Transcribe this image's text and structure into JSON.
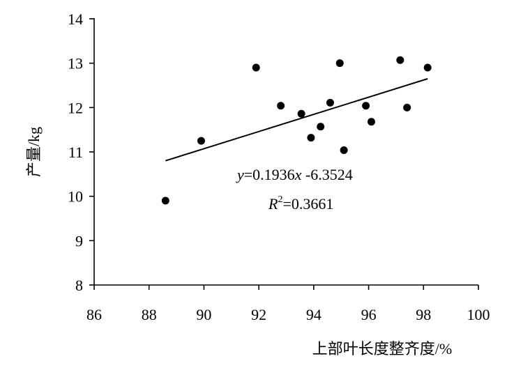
{
  "chart_data": {
    "type": "scatter",
    "xlabel": "上部叶长度整齐度/%",
    "ylabel": "产量/kg",
    "xlim": [
      86,
      100
    ],
    "ylim": [
      8,
      14
    ],
    "xticks": [
      86,
      88,
      90,
      92,
      94,
      96,
      98,
      100
    ],
    "yticks": [
      8,
      9,
      10,
      11,
      12,
      13,
      14
    ],
    "grid": false,
    "points": [
      {
        "x": 88.6,
        "y": 9.9
      },
      {
        "x": 89.9,
        "y": 11.25
      },
      {
        "x": 91.9,
        "y": 12.9
      },
      {
        "x": 92.8,
        "y": 12.04
      },
      {
        "x": 93.55,
        "y": 11.86
      },
      {
        "x": 93.9,
        "y": 11.32
      },
      {
        "x": 94.25,
        "y": 11.57
      },
      {
        "x": 94.6,
        "y": 12.11
      },
      {
        "x": 94.95,
        "y": 13.0
      },
      {
        "x": 95.1,
        "y": 11.04
      },
      {
        "x": 95.9,
        "y": 12.04
      },
      {
        "x": 96.1,
        "y": 11.68
      },
      {
        "x": 97.15,
        "y": 13.07
      },
      {
        "x": 97.4,
        "y": 12.0
      },
      {
        "x": 98.15,
        "y": 12.9
      }
    ],
    "trendline": {
      "slope": 0.1936,
      "intercept": -6.3524,
      "x_range": [
        88.6,
        98.15
      ]
    },
    "annotations": {
      "equation": {
        "y_var": "y",
        "equals_coef": "=0.1936",
        "x_var": "x",
        "intercept": " -6.3524"
      },
      "r_squared": {
        "var": "R",
        "exponent": "2",
        "value": "=0.3661"
      }
    }
  }
}
